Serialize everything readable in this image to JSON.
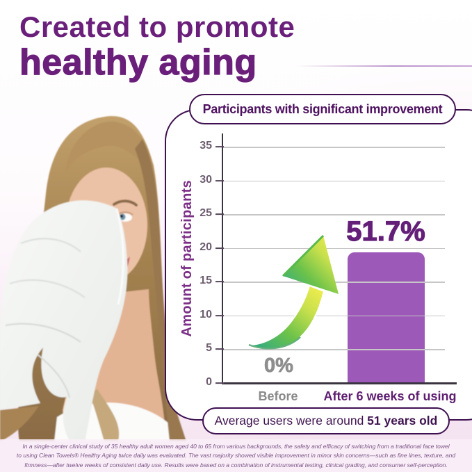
{
  "heading": {
    "line1": "Created to promote",
    "line2": "healthy aging"
  },
  "card": {
    "title": "Participants with significant improvement"
  },
  "footer": {
    "prefix": "Average users were around ",
    "bold": "51 years old"
  },
  "chart_data": {
    "type": "bar",
    "title": "Participants with significant improvement",
    "ylabel": "Amount of participants",
    "xlabel": "",
    "yticks": [
      0,
      5,
      10,
      15,
      20,
      25,
      30,
      35
    ],
    "ylim": [
      0,
      37
    ],
    "categories": [
      "Before",
      "After 6 weeks of using"
    ],
    "values": [
      0,
      19.3
    ],
    "value_labels": [
      "0%",
      "51.7%"
    ],
    "grid": true,
    "legend": false,
    "annotations": [
      "curved green-to-yellow growth arrow pointing from Before up toward After bar"
    ]
  },
  "photo": {
    "description": "Smiling blonde woman pressing a white textured face towel to her cheek"
  },
  "disclaimer": {
    "lines": [
      "In a single-center clinical study of 35 healthy adult women aged 40 to 65 from various backgrounds, the safety and efficacy of switching from a traditional face towel",
      "to using Clean Towels® Healthy Aging twice daily was evaluated. The vast majority showed visible improvement in minor skin concerns—such as fine lines, texture, and",
      "firmness—after twelve weeks of consistent daily use. Results were based on a combination of instrumental testing, clinical grading, and consumer self-perception."
    ]
  },
  "colors": {
    "heading_purple": "#6A1F7A",
    "card_border_purple": "#3E1050",
    "title_text_purple": "#4E1260",
    "bar_purple": "#9C59B8",
    "value_highlight_purple": "#641F78",
    "grey_label": "#8A8A8A",
    "axis_label_purple": "#7B2F86",
    "arrow_gradient_start": "#2AA88A",
    "arrow_gradient_end": "#F6EF4E",
    "background_pink": "#F4E4F0"
  },
  "icons": {
    "growth_arrow": "curved upward gradient arrow"
  }
}
